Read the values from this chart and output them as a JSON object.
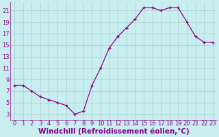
{
  "x": [
    0,
    1,
    2,
    3,
    4,
    5,
    6,
    7,
    8,
    9,
    10,
    11,
    12,
    13,
    14,
    15,
    16,
    17,
    18,
    19,
    20,
    21,
    22,
    23
  ],
  "y": [
    8,
    8,
    7,
    6,
    5.5,
    5,
    4.5,
    3,
    3.5,
    8,
    11,
    14.5,
    16.5,
    18,
    19.5,
    21.5,
    21.5,
    21,
    21.5,
    21.5,
    19,
    16.5,
    15.5,
    15.5
  ],
  "line_color": "#8B008B",
  "marker": "+",
  "bg_color": "#c8eef0",
  "grid_color": "#aacccc",
  "xlabel": "Windchill (Refroidissement éolien,°C)",
  "yticks": [
    3,
    5,
    7,
    9,
    11,
    13,
    15,
    17,
    19,
    21
  ],
  "xticks": [
    0,
    1,
    2,
    3,
    4,
    5,
    6,
    7,
    8,
    9,
    10,
    11,
    12,
    13,
    14,
    15,
    16,
    17,
    18,
    19,
    20,
    21,
    22,
    23
  ],
  "ylim": [
    2.0,
    22.5
  ],
  "xlim": [
    -0.5,
    23.5
  ],
  "xlabel_color": "#8B008B",
  "tick_color": "#8B008B",
  "tick_fontsize": 6,
  "xlabel_fontsize": 7.5
}
